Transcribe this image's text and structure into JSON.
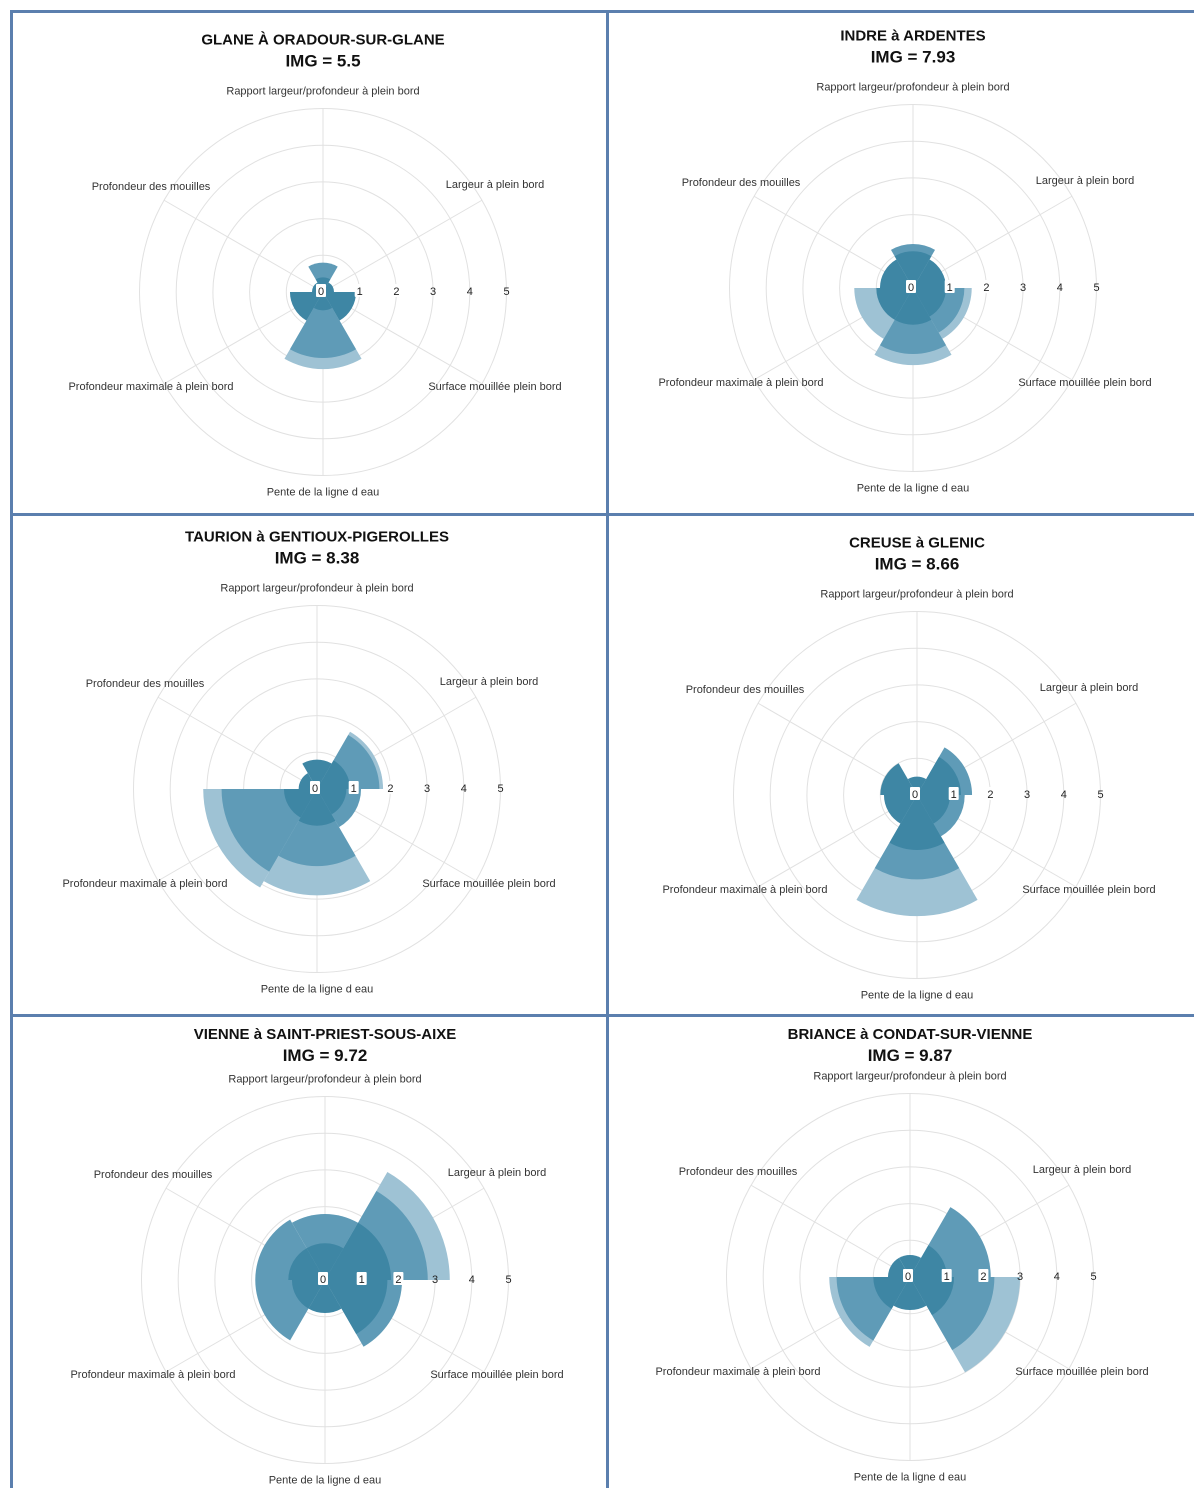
{
  "axis_labels": [
    "Rapport largeur/profondeur à plein bord",
    "Largeur à plein bord",
    "Surface mouillée plein bord",
    "Pente de la ligne d eau",
    "Profondeur maximale à plein bord",
    "Profondeur des mouilles"
  ],
  "radial_ticks": [
    "0",
    "1",
    "2",
    "3",
    "4",
    "5"
  ],
  "colors": {
    "dark": "#3e86a4",
    "mid": "#5f9bb7",
    "light": "#9ec2d4",
    "grid": "#e1e1e1",
    "border": "#5b7fae"
  },
  "chart_data": [
    {
      "type": "polar-area",
      "title": "GLANE À ORADOUR-SUR-GLANE",
      "img_label": "IMG =  5.5",
      "categories": [
        "Rapport largeur/profondeur à plein bord",
        "Largeur à plein bord",
        "Surface mouillée plein bord",
        "Pente de la ligne d eau",
        "Profondeur maximale à plein bord",
        "Profondeur des mouilles"
      ],
      "series": [
        {
          "values": [
            0.4,
            0.3,
            0.9,
            0.5,
            0.9,
            0.3
          ]
        },
        {
          "values": [
            0.8,
            0.0,
            0.0,
            1.8,
            0.0,
            0.0
          ]
        },
        {
          "values": [
            0.0,
            0.0,
            0.0,
            2.1,
            0.0,
            0.0
          ]
        }
      ],
      "rlim": [
        0,
        5
      ]
    },
    {
      "type": "polar-area",
      "title": "INDRE à ARDENTES",
      "img_label": "IMG =  7.93",
      "categories": [
        "Rapport largeur/profondeur à plein bord",
        "Largeur à plein bord",
        "Surface mouillée plein bord",
        "Pente de la ligne d eau",
        "Profondeur maximale à plein bord",
        "Profondeur des mouilles"
      ],
      "series": [
        {
          "values": [
            1.0,
            0.9,
            0.9,
            1.0,
            1.0,
            0.9
          ]
        },
        {
          "values": [
            1.2,
            0.0,
            1.4,
            1.8,
            0.0,
            0.0
          ]
        },
        {
          "values": [
            0.0,
            0.0,
            1.6,
            2.1,
            1.6,
            0.0
          ]
        }
      ],
      "rlim": [
        0,
        5
      ]
    },
    {
      "type": "polar-area",
      "title": "TAURION à GENTIOUX-PIGEROLLES",
      "img_label": "IMG =  8.38",
      "categories": [
        "Rapport largeur/profondeur à plein bord",
        "Largeur à plein bord",
        "Surface mouillée plein bord",
        "Pente de la ligne d eau",
        "Profondeur maximale à plein bord",
        "Profondeur des mouilles"
      ],
      "series": [
        {
          "values": [
            0.8,
            0.9,
            0.8,
            1.0,
            0.9,
            0.5
          ]
        },
        {
          "values": [
            0.0,
            1.7,
            1.2,
            2.1,
            2.6,
            0.0
          ]
        },
        {
          "values": [
            0.0,
            1.8,
            0.0,
            2.9,
            3.1,
            0.0
          ]
        }
      ],
      "rlim": [
        0,
        5
      ]
    },
    {
      "type": "polar-area",
      "title": "CREUSE à GLENIC",
      "img_label": "IMG =  8.66",
      "categories": [
        "Rapport largeur/profondeur à plein bord",
        "Largeur à plein bord",
        "Surface mouillée plein bord",
        "Pente de la ligne d eau",
        "Profondeur maximale à plein bord",
        "Profondeur des mouilles"
      ],
      "series": [
        {
          "values": [
            0.5,
            1.2,
            0.9,
            1.5,
            0.9,
            1.0
          ]
        },
        {
          "values": [
            0.0,
            1.5,
            1.3,
            2.3,
            0.0,
            0.0
          ]
        },
        {
          "values": [
            0.0,
            0.0,
            0.0,
            3.3,
            0.0,
            0.0
          ]
        }
      ],
      "rlim": [
        0,
        5
      ]
    },
    {
      "type": "polar-area",
      "title": "VIENNE à SAINT-PRIEST-SOUS-AIXE",
      "img_label": "IMG =  9.72",
      "categories": [
        "Rapport largeur/profondeur à plein bord",
        "Largeur à plein bord",
        "Surface mouillée plein bord",
        "Pente de la ligne d eau",
        "Profondeur maximale à plein bord",
        "Profondeur des mouilles"
      ],
      "series": [
        {
          "values": [
            1.0,
            1.8,
            1.7,
            0.9,
            0.9,
            1.0
          ]
        },
        {
          "values": [
            1.8,
            2.8,
            2.1,
            0.0,
            1.9,
            1.9
          ]
        },
        {
          "values": [
            0.0,
            3.4,
            0.0,
            0.0,
            0.0,
            0.0
          ]
        }
      ],
      "rlim": [
        0,
        5
      ]
    },
    {
      "type": "polar-area",
      "title": "BRIANCE à CONDAT-SUR-VIENNE",
      "img_label": "IMG =  9.87",
      "categories": [
        "Rapport largeur/profondeur à plein bord",
        "Largeur à plein bord",
        "Surface mouillée plein bord",
        "Pente de la ligne d eau",
        "Profondeur maximale à plein bord",
        "Profondeur des mouilles"
      ],
      "series": [
        {
          "values": [
            0.6,
            1.0,
            1.2,
            0.9,
            1.0,
            0.6
          ]
        },
        {
          "values": [
            0.0,
            2.2,
            2.3,
            0.0,
            2.0,
            0.0
          ]
        },
        {
          "values": [
            0.0,
            0.0,
            3.0,
            0.0,
            2.2,
            0.0
          ]
        }
      ],
      "rlim": [
        0,
        5
      ]
    }
  ]
}
